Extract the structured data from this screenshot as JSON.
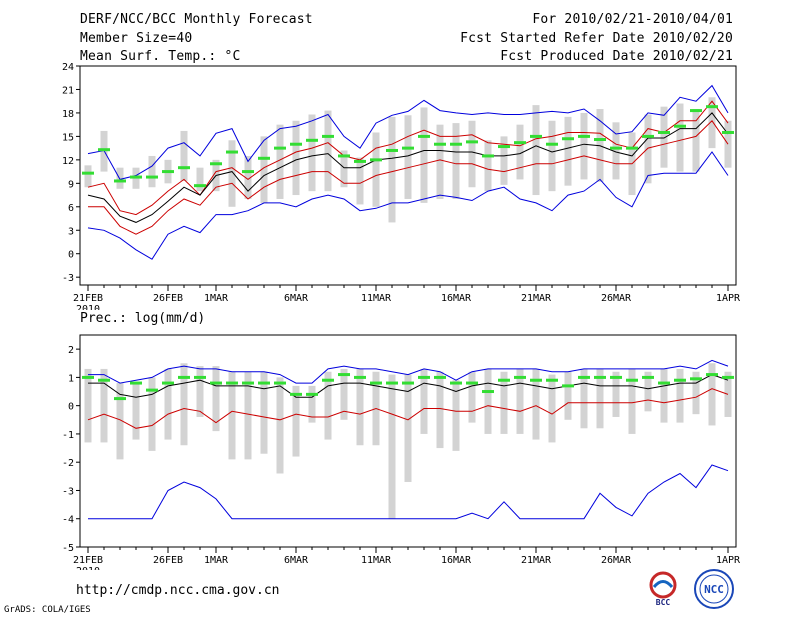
{
  "header": {
    "title": "DERF/NCC/BCC Monthly Forecast",
    "member_size": "Member Size=40",
    "variable": "Mean Surf. Temp.: °C",
    "forecast_period": "For 2010/02/21-2010/04/01",
    "start_date": "Fcst Started Refer Date 2010/02/20",
    "produced_date": "Fcst Produced Date 2010/02/21"
  },
  "footer": {
    "url": "http://cmdp.ncc.cma.gov.cn",
    "grads": "GrADS: COLA/IGES",
    "logo_bcc": "BCC",
    "logo_ncc": "NCC"
  },
  "colors": {
    "max_line": "#0000dd",
    "spread_line": "#cc0000",
    "mean_line": "#000000",
    "box": "#d3d3d3",
    "median": "#33dd33"
  },
  "chart_data": [
    {
      "id": "temp",
      "type": "line",
      "title": "",
      "xlabel": "",
      "ylabel": "",
      "ylim": [
        -4,
        24
      ],
      "yticks": [
        -3,
        0,
        3,
        6,
        9,
        12,
        15,
        18,
        21,
        24
      ],
      "xlim": [
        -0.5,
        40.5
      ],
      "x_ticks": [
        {
          "x": 0,
          "label": "21FEB",
          "sub": "2010"
        },
        {
          "x": 5,
          "label": "26FEB"
        },
        {
          "x": 8,
          "label": "1MAR"
        },
        {
          "x": 13,
          "label": "6MAR"
        },
        {
          "x": 18,
          "label": "11MAR"
        },
        {
          "x": 23,
          "label": "16MAR"
        },
        {
          "x": 28,
          "label": "21MAR"
        },
        {
          "x": 33,
          "label": "26MAR"
        },
        {
          "x": 40,
          "label": "1APR"
        }
      ],
      "series": [
        {
          "name": "max",
          "color": "#0000dd",
          "values": [
            12.8,
            13.2,
            9.5,
            10.0,
            11.2,
            13.5,
            14.2,
            12.5,
            15.4,
            16.0,
            11.8,
            14.5,
            16.0,
            16.3,
            17.0,
            17.8,
            15.0,
            13.5,
            16.7,
            17.7,
            18.2,
            19.6,
            18.3,
            18.0,
            17.8,
            18.0,
            17.8,
            17.8,
            18.0,
            18.2,
            18.0,
            18.5,
            17.0,
            15.3,
            15.6,
            18.0,
            17.7,
            20.0,
            19.5,
            21.5,
            18.0
          ]
        },
        {
          "name": "upper",
          "color": "#cc0000",
          "values": [
            8.5,
            9.0,
            5.5,
            5.0,
            6.2,
            8.0,
            9.5,
            7.5,
            10.5,
            11.0,
            9.5,
            11.0,
            12.0,
            13.0,
            13.5,
            14.2,
            12.5,
            12.0,
            13.5,
            14.0,
            15.0,
            15.8,
            15.0,
            15.0,
            15.2,
            14.2,
            14.0,
            13.8,
            14.7,
            15.0,
            15.5,
            15.5,
            15.4,
            14.0,
            13.5,
            16.0,
            15.5,
            17.0,
            17.0,
            19.5,
            16.7
          ]
        },
        {
          "name": "mean",
          "color": "#000000",
          "values": [
            7.5,
            7.0,
            4.8,
            4.0,
            5.0,
            6.7,
            8.5,
            7.5,
            10.0,
            10.5,
            8.0,
            10.0,
            11.0,
            12.0,
            12.5,
            12.8,
            11.0,
            11.0,
            12.0,
            12.2,
            12.5,
            13.2,
            13.2,
            13.0,
            13.0,
            12.5,
            12.5,
            12.8,
            13.8,
            13.0,
            13.5,
            14.0,
            13.8,
            13.0,
            12.5,
            14.8,
            14.8,
            16.0,
            16.0,
            18.0,
            15.3
          ]
        },
        {
          "name": "lower",
          "color": "#cc0000",
          "values": [
            6.0,
            6.0,
            3.5,
            2.5,
            3.5,
            5.5,
            7.0,
            6.2,
            8.5,
            9.0,
            7.0,
            8.5,
            9.5,
            10.0,
            10.5,
            10.5,
            9.0,
            9.0,
            10.0,
            10.5,
            11.0,
            11.5,
            12.0,
            11.5,
            11.5,
            10.8,
            10.5,
            11.0,
            11.5,
            11.5,
            12.0,
            12.5,
            12.0,
            11.5,
            11.5,
            13.5,
            14.0,
            14.5,
            15.0,
            17.0,
            14.0
          ]
        },
        {
          "name": "min",
          "color": "#0000dd",
          "values": [
            3.3,
            3.0,
            2.0,
            0.5,
            -0.7,
            2.5,
            3.5,
            2.7,
            5.0,
            5.0,
            5.5,
            6.5,
            6.5,
            6.0,
            7.0,
            7.5,
            7.0,
            5.5,
            5.8,
            6.5,
            6.5,
            7.0,
            7.5,
            7.2,
            6.8,
            8.0,
            8.5,
            7.0,
            6.5,
            5.5,
            7.5,
            8.0,
            9.5,
            7.2,
            6.0,
            10.0,
            10.3,
            10.3,
            10.3,
            13.0,
            10.0
          ]
        }
      ],
      "boxes": {
        "low": [
          8.5,
          10.5,
          8.3,
          8.3,
          8.5,
          9.0,
          9.3,
          8.0,
          8.0,
          6.0,
          7.0,
          6.5,
          7.0,
          7.5,
          8.0,
          8.0,
          8.5,
          6.3,
          6.0,
          4.0,
          7.0,
          6.5,
          7.0,
          7.0,
          8.5,
          8.0,
          8.8,
          9.5,
          7.5,
          8.0,
          8.7,
          9.5,
          9.2,
          9.5,
          7.5,
          9.0,
          11.0,
          10.5,
          10.5,
          13.5,
          11.0
        ],
        "high": [
          11.3,
          15.7,
          11.0,
          11.0,
          12.5,
          12.0,
          15.7,
          11.0,
          12.0,
          14.5,
          12.5,
          15.0,
          16.5,
          17.0,
          17.8,
          18.3,
          13.2,
          12.3,
          15.5,
          17.5,
          17.7,
          18.7,
          16.5,
          16.7,
          17.0,
          14.5,
          15.0,
          16.5,
          19.0,
          17.0,
          17.5,
          18.0,
          18.5,
          16.8,
          15.5,
          17.8,
          18.8,
          19.2,
          18.5,
          20.0,
          17.0
        ]
      },
      "medians": [
        10.3,
        13.3,
        9.3,
        9.8,
        9.8,
        10.5,
        11.0,
        8.7,
        11.5,
        13.0,
        10.5,
        12.2,
        13.5,
        14.0,
        14.5,
        15.0,
        12.5,
        11.8,
        12.0,
        13.2,
        13.5,
        15.0,
        14.0,
        14.0,
        14.3,
        12.5,
        13.7,
        14.2,
        15.0,
        14.0,
        14.7,
        15.0,
        14.6,
        13.5,
        13.5,
        15.0,
        15.5,
        16.3,
        18.3,
        18.8,
        15.5
      ]
    },
    {
      "id": "prec",
      "type": "line",
      "title": "Prec.: log(mm/d)",
      "xlabel": "",
      "ylabel": "",
      "ylim": [
        -5,
        2.5
      ],
      "yticks": [
        -5,
        -4,
        -3,
        -2,
        -1,
        0,
        1,
        2
      ],
      "xlim": [
        -0.5,
        40.5
      ],
      "x_ticks": [
        {
          "x": 0,
          "label": "21FEB",
          "sub": "2010"
        },
        {
          "x": 5,
          "label": "26FEB"
        },
        {
          "x": 8,
          "label": "1MAR"
        },
        {
          "x": 13,
          "label": "6MAR"
        },
        {
          "x": 18,
          "label": "11MAR"
        },
        {
          "x": 23,
          "label": "16MAR"
        },
        {
          "x": 28,
          "label": "21MAR"
        },
        {
          "x": 33,
          "label": "26MAR"
        },
        {
          "x": 40,
          "label": "1APR"
        }
      ],
      "series": [
        {
          "name": "max",
          "color": "#0000dd",
          "values": [
            1.1,
            1.1,
            0.8,
            0.9,
            1.0,
            1.3,
            1.4,
            1.3,
            1.3,
            1.2,
            1.2,
            1.2,
            1.1,
            0.8,
            0.8,
            1.3,
            1.4,
            1.3,
            1.3,
            1.2,
            1.1,
            1.3,
            1.2,
            0.9,
            1.2,
            1.3,
            1.3,
            1.3,
            1.3,
            1.2,
            1.2,
            1.3,
            1.3,
            1.3,
            1.3,
            1.3,
            1.3,
            1.4,
            1.3,
            1.6,
            1.4
          ]
        },
        {
          "name": "mean",
          "color": "#000000",
          "values": [
            0.8,
            0.8,
            0.4,
            0.3,
            0.4,
            0.7,
            0.8,
            0.9,
            0.7,
            0.7,
            0.7,
            0.6,
            0.7,
            0.3,
            0.3,
            0.7,
            0.8,
            0.8,
            0.7,
            0.6,
            0.5,
            0.8,
            0.7,
            0.5,
            0.7,
            0.8,
            0.7,
            0.8,
            0.7,
            0.6,
            0.7,
            0.8,
            0.7,
            0.7,
            0.7,
            0.6,
            0.7,
            0.8,
            0.8,
            1.1,
            0.9
          ]
        },
        {
          "name": "lower",
          "color": "#cc0000",
          "values": [
            -0.5,
            -0.3,
            -0.5,
            -0.8,
            -0.7,
            -0.3,
            -0.1,
            -0.2,
            -0.6,
            -0.2,
            -0.3,
            -0.4,
            -0.5,
            -0.3,
            -0.4,
            -0.4,
            -0.2,
            -0.3,
            -0.1,
            -0.3,
            -0.5,
            -0.1,
            -0.1,
            -0.2,
            -0.2,
            0.0,
            -0.1,
            -0.2,
            0.0,
            -0.3,
            0.1,
            0.1,
            0.1,
            0.1,
            0.1,
            0.2,
            0.1,
            0.2,
            0.3,
            0.6,
            0.4
          ]
        },
        {
          "name": "min",
          "color": "#0000dd",
          "values": [
            -4,
            -4,
            -4,
            -4,
            -4,
            -3,
            -2.7,
            -2.9,
            -3.3,
            -4,
            -4,
            -4,
            -4,
            -4,
            -4,
            -4,
            -4,
            -4,
            -4,
            -4,
            -4,
            -4,
            -4,
            -4,
            -3.8,
            -4,
            -3.4,
            -4,
            -4,
            -4,
            -4,
            -4,
            -3.1,
            -3.6,
            -3.9,
            -3.1,
            -2.7,
            -2.4,
            -2.9,
            -2.1,
            -2.3
          ]
        }
      ],
      "boxes": {
        "low": [
          -1.3,
          -1.3,
          -1.9,
          -1.2,
          -1.6,
          -1.2,
          -1.4,
          -0.4,
          -0.9,
          -1.9,
          -1.9,
          -1.7,
          -2.4,
          -1.8,
          -0.6,
          -1.2,
          -0.5,
          -1.4,
          -1.4,
          -4.0,
          -2.7,
          -1.0,
          -1.5,
          -1.6,
          -0.6,
          -1.0,
          -1.0,
          -1.0,
          -1.2,
          -1.3,
          -0.5,
          -0.8,
          -0.8,
          -0.4,
          -1.0,
          -0.2,
          -0.6,
          -0.6,
          -0.3,
          -0.7,
          -0.4
        ],
        "high": [
          1.3,
          1.3,
          0.8,
          0.8,
          1.0,
          1.3,
          1.5,
          1.4,
          1.4,
          1.2,
          1.2,
          1.2,
          1.0,
          0.7,
          0.7,
          1.2,
          1.3,
          1.3,
          1.2,
          1.1,
          1.1,
          1.3,
          1.2,
          0.9,
          1.2,
          1.3,
          1.2,
          1.3,
          1.3,
          1.1,
          1.2,
          1.3,
          1.3,
          1.2,
          1.3,
          1.2,
          1.3,
          1.3,
          1.2,
          1.5,
          1.2
        ]
      },
      "medians": [
        1.0,
        0.9,
        0.25,
        0.8,
        0.55,
        0.8,
        1.0,
        1.0,
        0.8,
        0.8,
        0.8,
        0.8,
        0.8,
        0.4,
        0.4,
        0.9,
        1.1,
        1.0,
        0.8,
        0.8,
        0.8,
        1.0,
        1.0,
        0.8,
        0.8,
        0.5,
        0.9,
        1.0,
        0.9,
        0.9,
        0.7,
        1.0,
        1.0,
        1.0,
        0.9,
        1.0,
        0.8,
        0.9,
        0.95,
        1.1,
        1.0
      ]
    }
  ]
}
